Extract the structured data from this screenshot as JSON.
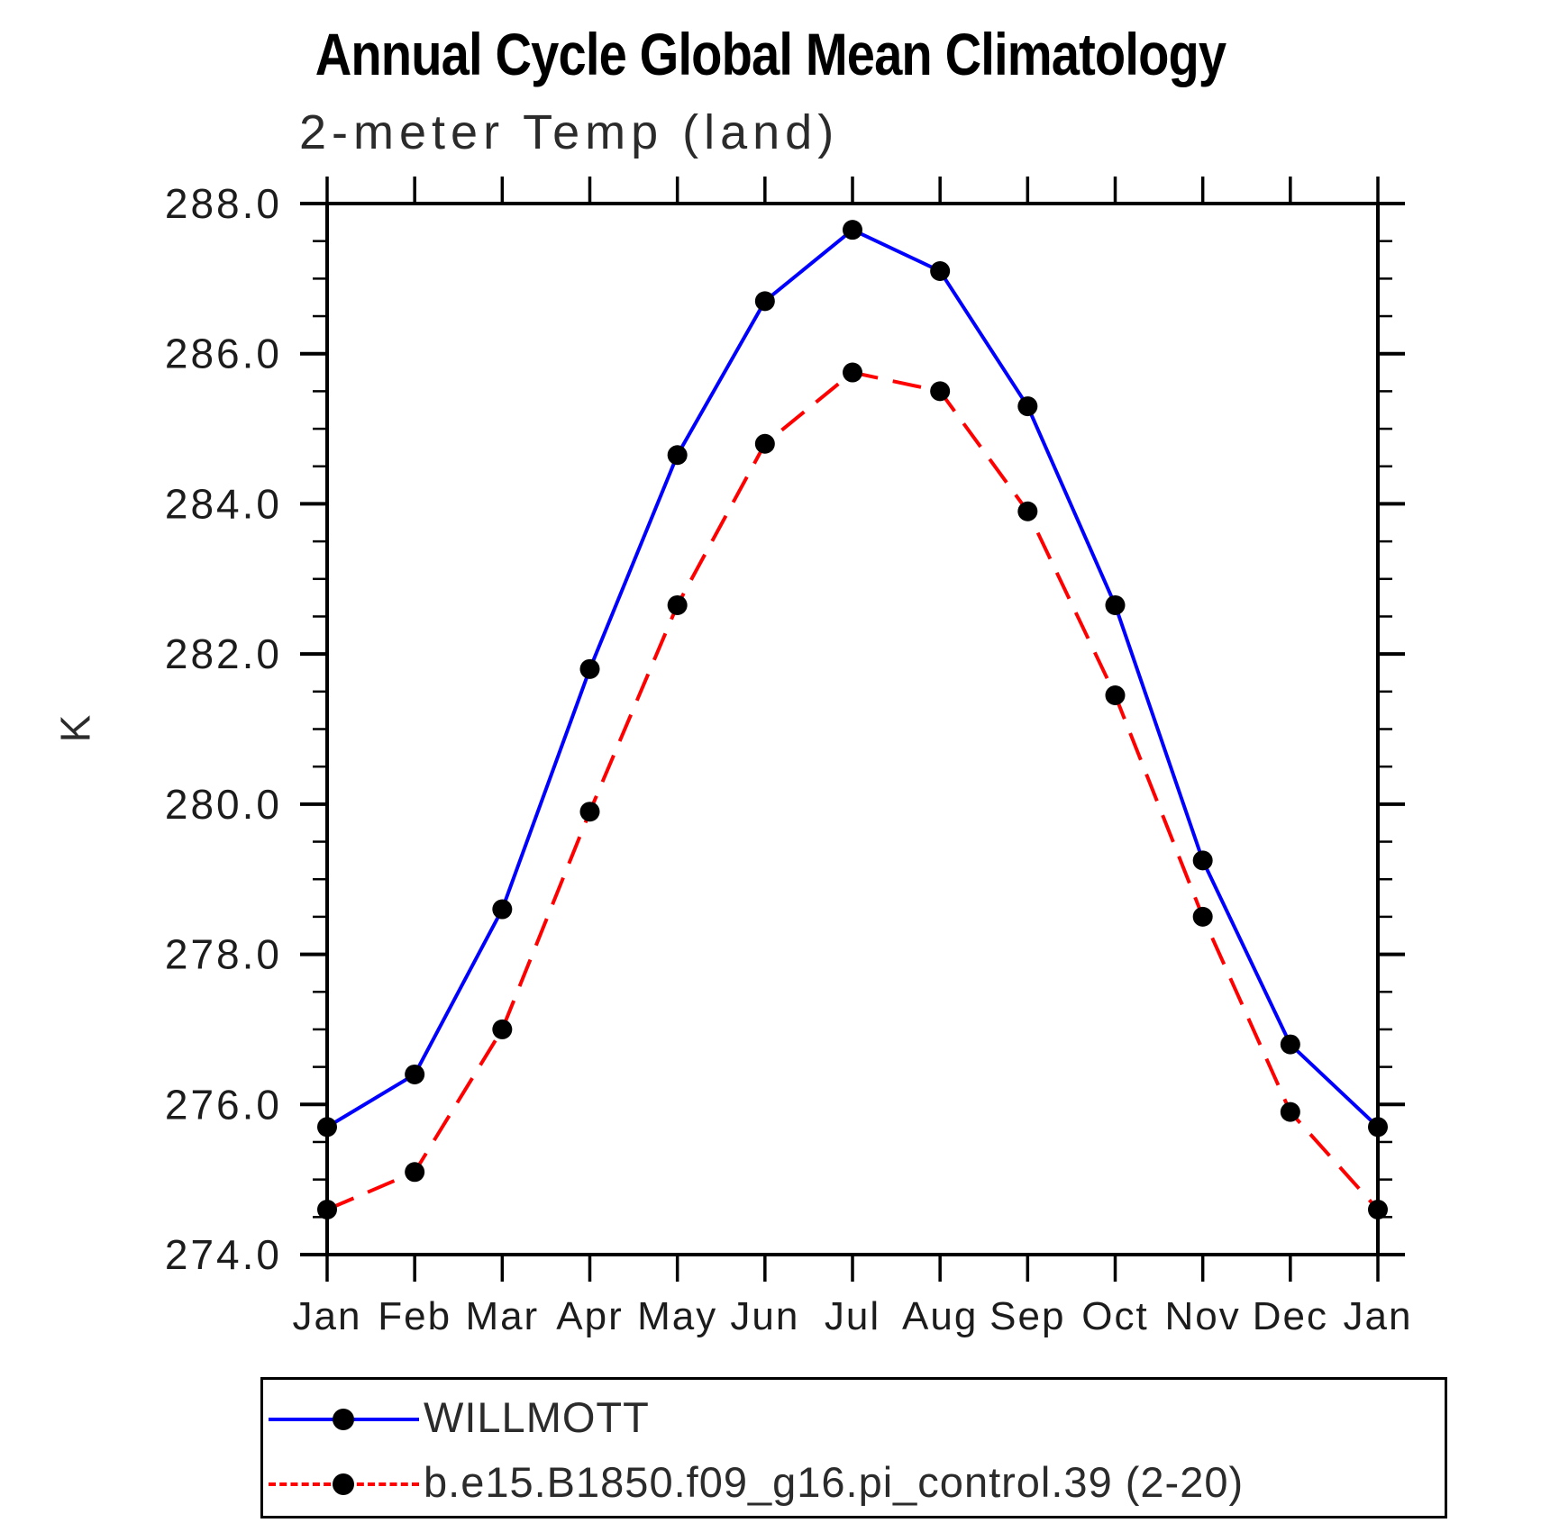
{
  "chart": {
    "title": "Annual Cycle Global Mean Climatology",
    "subtitle": "2-meter Temp (land)",
    "ylabel": "K"
  },
  "chart_data": {
    "type": "line",
    "title": "Annual Cycle Global Mean Climatology",
    "subtitle": "2-meter Temp (land)",
    "xlabel": "",
    "ylabel": "K",
    "ylim": [
      274.0,
      288.0
    ],
    "y_major_step": 2.0,
    "y_minor_step": 0.5,
    "grid": false,
    "legend_position": "bottom",
    "marker": "filled-circle",
    "marker_color": "#000000",
    "y_ticks": [
      {
        "value": 288.0,
        "label": "288.0"
      },
      {
        "value": 286.0,
        "label": "286.0"
      },
      {
        "value": 284.0,
        "label": "284.0"
      },
      {
        "value": 282.0,
        "label": "282.0"
      },
      {
        "value": 280.0,
        "label": "280.0"
      },
      {
        "value": 278.0,
        "label": "278.0"
      },
      {
        "value": 276.0,
        "label": "276.0"
      },
      {
        "value": 274.0,
        "label": "274.0"
      }
    ],
    "categories": [
      "Jan",
      "Feb",
      "Mar",
      "Apr",
      "May",
      "Jun",
      "Jul",
      "Aug",
      "Sep",
      "Oct",
      "Nov",
      "Dec",
      "Jan"
    ],
    "series": [
      {
        "name": "WILLMOTT",
        "color": "#0000ff",
        "style": "solid",
        "values": [
          275.7,
          276.4,
          278.6,
          281.8,
          284.65,
          286.7,
          287.65,
          287.1,
          285.3,
          282.65,
          279.25,
          276.8,
          275.7
        ]
      },
      {
        "name": "b.e15.B1850.f09_g16.pi_control.39 (2-20)",
        "color": "#ff0000",
        "style": "dashed",
        "values": [
          274.6,
          275.1,
          277.0,
          279.9,
          282.65,
          284.8,
          285.75,
          285.5,
          283.9,
          281.45,
          278.5,
          275.9,
          274.6
        ]
      }
    ]
  }
}
